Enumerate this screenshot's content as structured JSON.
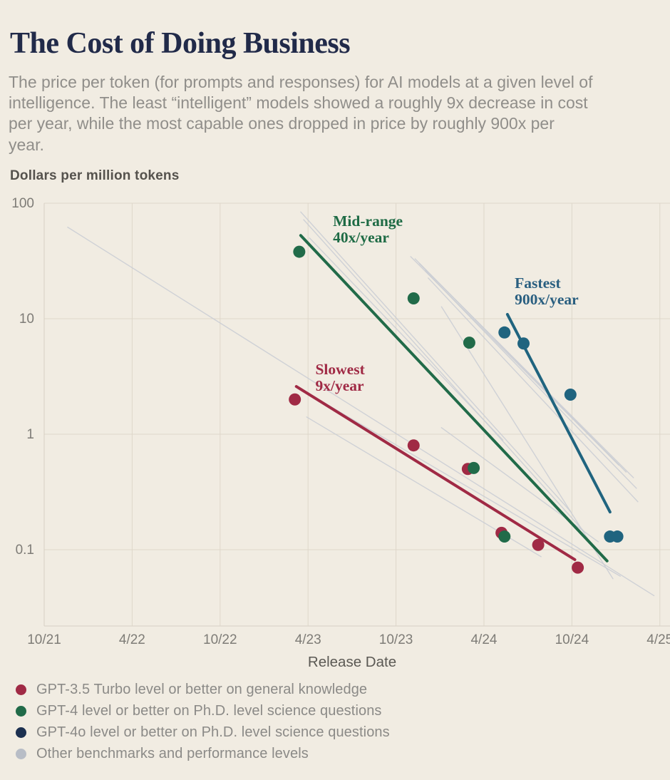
{
  "header": {
    "title": "The Cost of Doing Business",
    "subtitle": "The price per token (for prompts and responses) for AI models at a given level of intelligence. The least “intelligent” models showed a roughly 9x decrease in cost per year, while the most capable ones dropped in price by roughly 900x per year."
  },
  "chart_data": {
    "type": "scatter",
    "title": "The Cost of Doing Business",
    "ylabel": "Dollars per million tokens",
    "xlabel": "Release Date",
    "y_scale": "log",
    "y_ticks": [
      "100",
      "10",
      "1",
      "0.1"
    ],
    "y_tick_values": [
      100,
      10,
      1,
      0.1
    ],
    "ylim": [
      0.02,
      100
    ],
    "x_axis_note": "x units are months since 10/2021",
    "x_ticks": [
      "10/21",
      "4/22",
      "10/22",
      "4/23",
      "10/23",
      "4/24",
      "10/24",
      "4/25"
    ],
    "x_tick_months": [
      0,
      6,
      12,
      18,
      24,
      30,
      36,
      42
    ],
    "xlim_months": [
      0,
      42.7
    ],
    "grid": true,
    "series": [
      {
        "name": "GPT-3.5 Turbo level or better on general knowledge",
        "color": "#a02a45",
        "points": [
          [
            17.1,
            2.0
          ],
          [
            25.2,
            0.8
          ],
          [
            28.9,
            0.5
          ],
          [
            31.2,
            0.14
          ],
          [
            33.7,
            0.11
          ],
          [
            36.4,
            0.07
          ]
        ],
        "trend": {
          "label_line1": "Slowest",
          "label_line2": "9x/year",
          "label_color": "#a02a45",
          "label_anchor": [
            18.5,
            4.2
          ],
          "from": [
            17.2,
            2.59
          ],
          "to": [
            36.2,
            0.082
          ]
        }
      },
      {
        "name": "GPT-4 level or better on Ph.D. level science questions",
        "color": "#216b49",
        "points": [
          [
            17.4,
            38
          ],
          [
            25.2,
            15
          ],
          [
            29.0,
            6.2
          ],
          [
            29.3,
            0.51
          ],
          [
            31.4,
            0.13
          ]
        ],
        "trend": {
          "label_line1": "Mid-range",
          "label_line2": "40x/year",
          "label_color": "#1e6b45",
          "label_anchor": [
            19.7,
            81
          ],
          "from": [
            17.5,
            52.6
          ],
          "to": [
            38.4,
            0.08
          ]
        }
      },
      {
        "name": "GPT-4o level or better on Ph.D. level science questions",
        "color": "#20647f",
        "points": [
          [
            31.4,
            7.6
          ],
          [
            32.7,
            6.1
          ],
          [
            35.9,
            2.2
          ],
          [
            38.6,
            0.13
          ],
          [
            39.1,
            0.13
          ]
        ],
        "trend": {
          "label_line1": "Fastest",
          "label_line2": "900x/year",
          "label_color": "#2a5f80",
          "label_anchor": [
            32.1,
            23.4
          ],
          "from": [
            31.6,
            10.9
          ],
          "to": [
            38.6,
            0.212
          ]
        }
      }
    ],
    "other_lines": {
      "name": "Other benchmarks and performance levels",
      "color": "#c9ccd3",
      "segments": [
        [
          1.6,
          62,
          41.6,
          0.04
        ],
        [
          17.4,
          2.5,
          39.3,
          0.059
        ],
        [
          17.5,
          84,
          35.9,
          0.215
        ],
        [
          17.7,
          72,
          36.8,
          0.145
        ],
        [
          25.0,
          34.5,
          39.2,
          0.54
        ],
        [
          25.3,
          33.0,
          39.7,
          0.47
        ],
        [
          25.6,
          30.0,
          40.2,
          0.42
        ],
        [
          26.0,
          26.0,
          40.4,
          0.34
        ],
        [
          26.2,
          22.5,
          40.5,
          0.26
        ],
        [
          27.1,
          12.7,
          38.8,
          0.056
        ],
        [
          18.1,
          50,
          31.3,
          0.89
        ],
        [
          27.1,
          1.14,
          37.8,
          0.117
        ],
        [
          17.9,
          1.41,
          33.9,
          0.087
        ]
      ]
    }
  },
  "legend": {
    "items": [
      {
        "label": "GPT-3.5 Turbo level or better on general knowledge",
        "color": "#a02a45"
      },
      {
        "label": "GPT-4 level or better on Ph.D. level science questions",
        "color": "#216b49"
      },
      {
        "label": "GPT-4o level or better on Ph.D. level science questions",
        "color": "#1c3050"
      },
      {
        "label": "Other benchmarks and performance levels",
        "color": "#b8bdc6"
      }
    ]
  }
}
